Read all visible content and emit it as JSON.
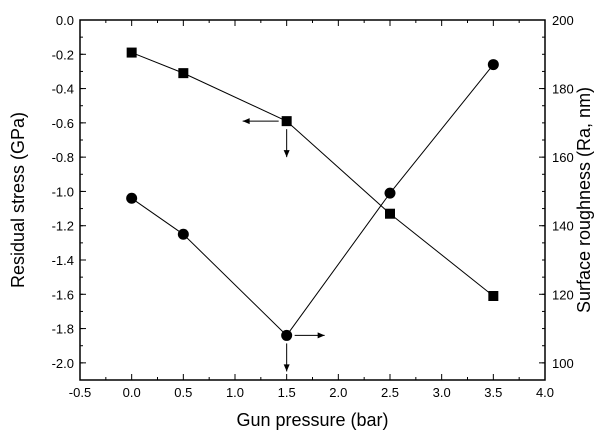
{
  "chart_data": {
    "type": "scatter",
    "title": "",
    "xlabel": "Gun pressure  (bar)",
    "ylabel_left": "Residual stress  (GPa)",
    "ylabel_right": "Surface roughness  (Ra, nm)",
    "xlim": [
      -0.5,
      4.0
    ],
    "ylim_left": [
      -2.1,
      0.0
    ],
    "ylim_right": [
      95,
      200
    ],
    "x_ticks": [
      "-0.5",
      "0.0",
      "0.5",
      "1.0",
      "1.5",
      "2.0",
      "2.5",
      "3.0",
      "3.5",
      "4.0"
    ],
    "y_left_ticks": [
      "0.0",
      "-0.2",
      "-0.4",
      "-0.6",
      "-0.8",
      "-1.0",
      "-1.2",
      "-1.4",
      "-1.6",
      "-1.8",
      "-2.0"
    ],
    "y_right_ticks": [
      "100",
      "120",
      "140",
      "160",
      "180",
      "200"
    ],
    "grid": false,
    "series": [
      {
        "marker": "square",
        "axis": "right",
        "color": "#000000",
        "x": [
          0.0,
          0.5,
          1.5,
          2.5,
          3.5
        ],
        "y": [
          190.5,
          184.5,
          170.5,
          143.5,
          119.5
        ]
      },
      {
        "marker": "circle",
        "axis": "left",
        "color": "#000000",
        "x": [
          0.0,
          0.5,
          1.5,
          2.5,
          3.5
        ],
        "y": [
          -1.04,
          -1.25,
          -1.84,
          -1.01,
          -0.26
        ]
      }
    ],
    "annotations": [
      {
        "at_x": 1.5,
        "at_y": -0.59,
        "arrows": [
          "left",
          "down"
        ],
        "refers_to": "square"
      },
      {
        "at_x": 1.5,
        "at_y": -1.84,
        "arrows": [
          "right",
          "down"
        ],
        "refers_to": "circle"
      }
    ]
  }
}
